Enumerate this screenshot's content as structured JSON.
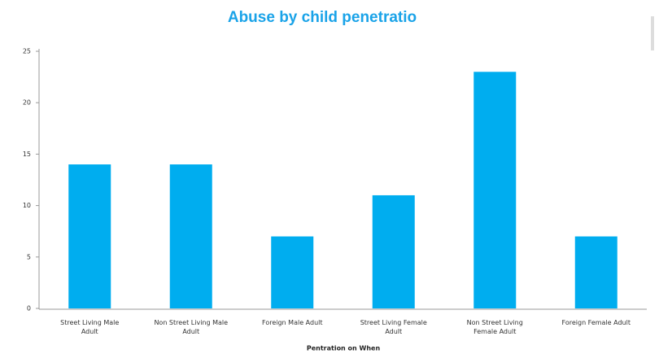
{
  "chart_data": {
    "type": "bar",
    "title": "Abuse by child penetratio",
    "x_label": "Pentration on When",
    "categories": [
      "Street Living Male Adult",
      "Non Street Living Male Adult",
      "Foreign Male Adult",
      "Street Living Female Adult",
      "Non Street Living Female Adult",
      "Foreign Female Adult"
    ],
    "values": [
      14,
      14,
      7,
      11,
      23,
      7
    ],
    "color": "#00adef",
    "ylim": [
      0,
      25
    ],
    "yticks": [
      0,
      5,
      10,
      15,
      20,
      25
    ],
    "grid": false
  }
}
